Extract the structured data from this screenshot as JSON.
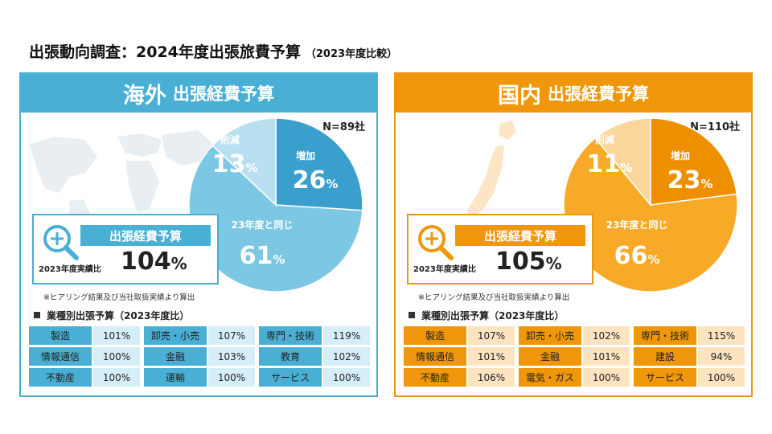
{
  "title": "出張動向調査：2024年度出張旅費予算",
  "subtitle": "（2023年度比較）",
  "colors": {
    "overseas_accent": "#4aafd4",
    "overseas_slices": [
      "#3a9fcc",
      "#7cc7e3",
      "#b9e0f0"
    ],
    "domestic_accent": "#f0960a",
    "domestic_slices": [
      "#ee8f00",
      "#f7a928",
      "#fbd79c"
    ]
  },
  "chart_data": [
    {
      "type": "pie",
      "title_main": "海外",
      "title_sub": "出張経費予算",
      "n_label": "N=89社",
      "categories": [
        "増加",
        "23年度と同じ",
        "削減"
      ],
      "values": [
        26,
        61,
        13
      ],
      "value_labels": [
        "26",
        "61",
        "13"
      ],
      "unit": "%",
      "budget_label": "出張経費予算",
      "budget_caption": "2023年度実績比",
      "budget_value": "104",
      "note": "※ヒアリング結果及び当社取扱実績より算出",
      "industry_title": "業種別出張予算（2023年度比）",
      "industries": [
        [
          {
            "name": "製造",
            "value": "101%"
          },
          {
            "name": "情報通信",
            "value": "100%"
          },
          {
            "name": "不動産",
            "value": "100%"
          }
        ],
        [
          {
            "name": "卸売・小売",
            "value": "107%"
          },
          {
            "name": "金融",
            "value": "103%"
          },
          {
            "name": "運輸",
            "value": "100%"
          }
        ],
        [
          {
            "name": "専門・技術",
            "value": "119%"
          },
          {
            "name": "教育",
            "value": "102%"
          },
          {
            "name": "サービス",
            "value": "100%"
          }
        ]
      ]
    },
    {
      "type": "pie",
      "title_main": "国内",
      "title_sub": "出張経費予算",
      "n_label": "N=110社",
      "categories": [
        "増加",
        "23年度と同じ",
        "削減"
      ],
      "values": [
        23,
        66,
        11
      ],
      "value_labels": [
        "23",
        "66",
        "11"
      ],
      "unit": "%",
      "budget_label": "出張経費予算",
      "budget_caption": "2023年度実績比",
      "budget_value": "105",
      "note": "※ヒアリング結果及び当社取扱実績より算出",
      "industry_title": "業種別出張予算（2023年度比）",
      "industries": [
        [
          {
            "name": "製造",
            "value": "107%"
          },
          {
            "name": "情報通信",
            "value": "101%"
          },
          {
            "name": "不動産",
            "value": "106%"
          }
        ],
        [
          {
            "name": "卸売・小売",
            "value": "102%"
          },
          {
            "name": "金融",
            "value": "101%"
          },
          {
            "name": "電気・ガス",
            "value": "100%"
          }
        ],
        [
          {
            "name": "専門・技術",
            "value": "115%"
          },
          {
            "name": "建設",
            "value": "94%"
          },
          {
            "name": "サービス",
            "value": "100%"
          }
        ]
      ]
    }
  ]
}
